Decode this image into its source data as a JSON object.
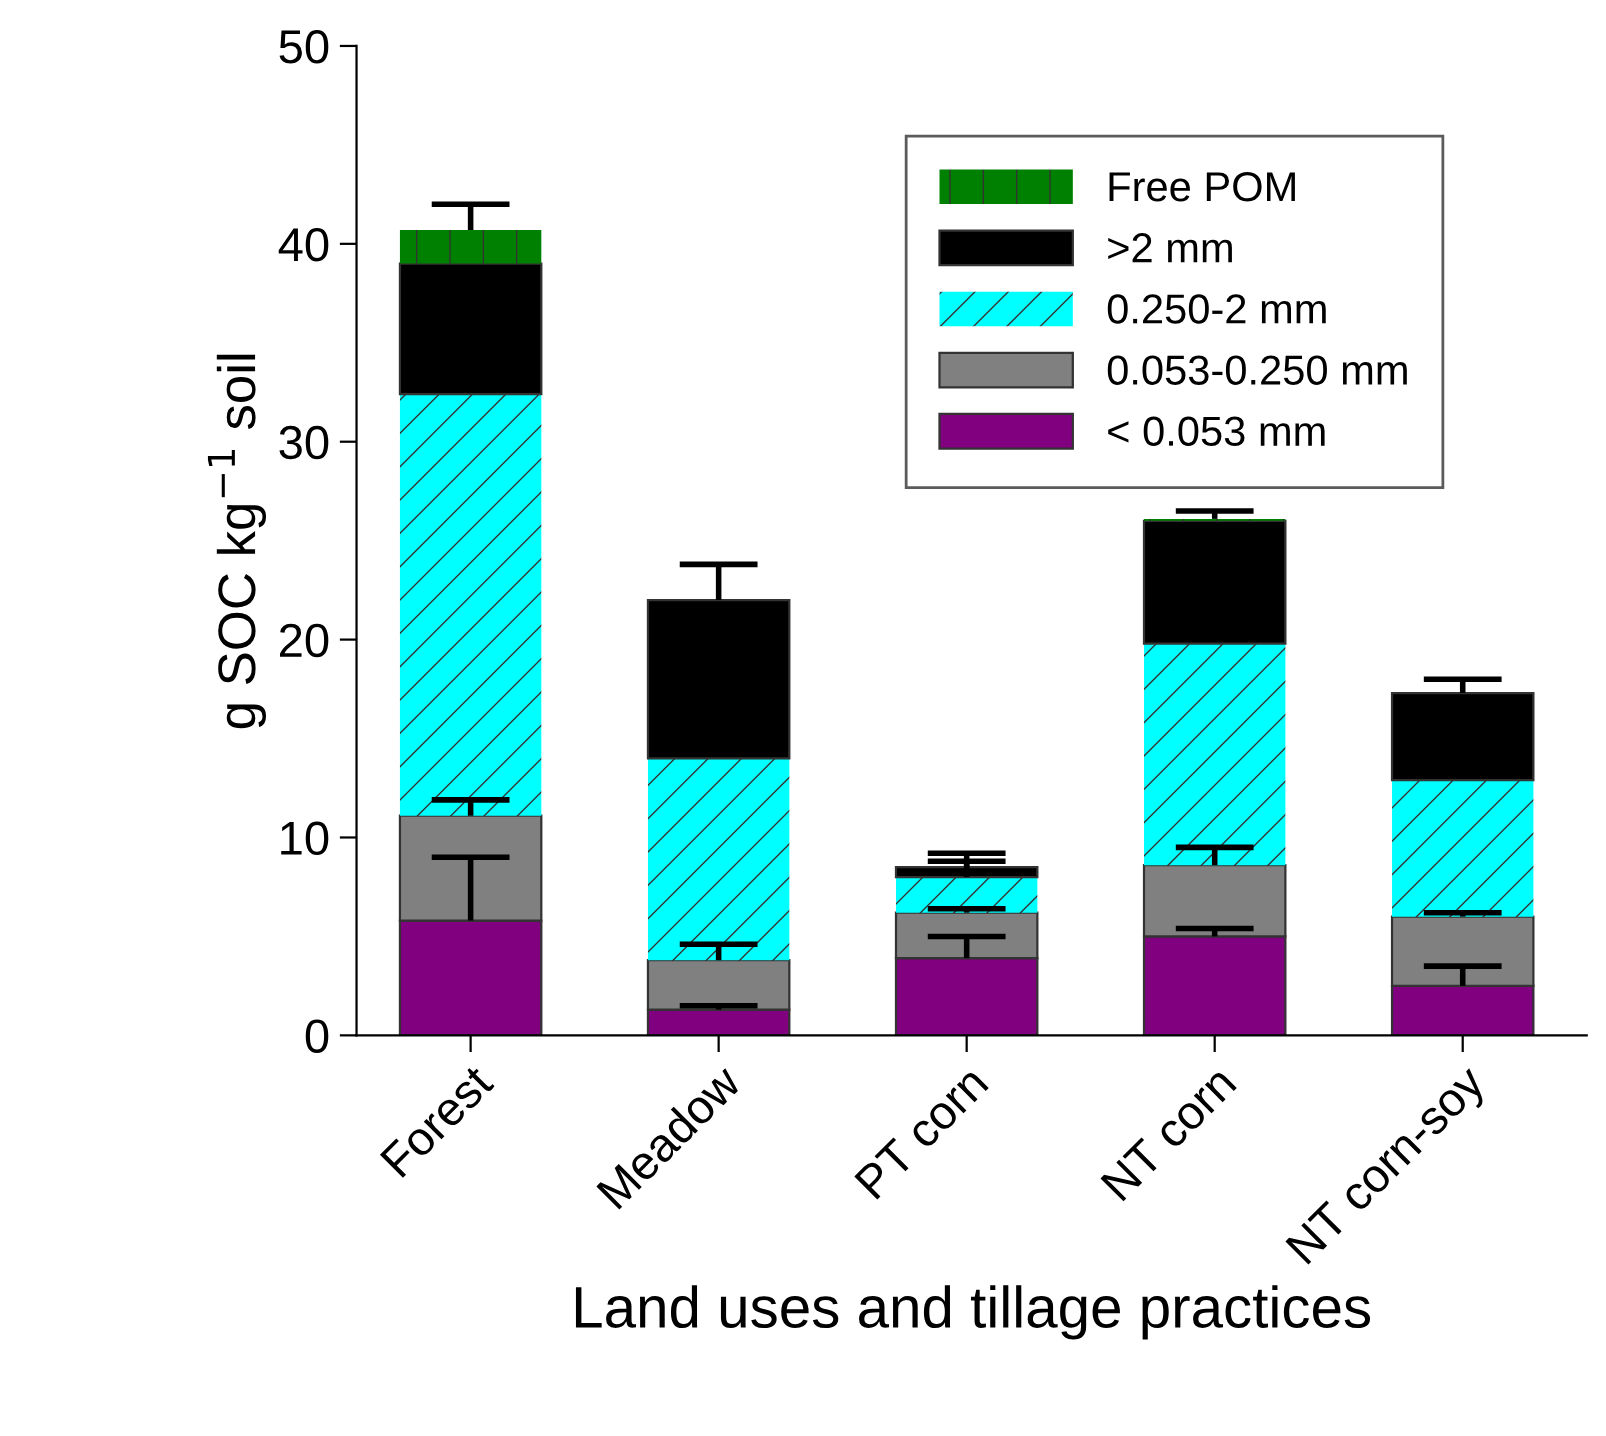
{
  "chart_data": {
    "type": "bar",
    "stacked": true,
    "xlabel": "Land uses and tillage practices",
    "ylabel": "g SOC kg$^{−1}$ soil",
    "categories": [
      "Forest",
      "Meadow",
      "PT corn",
      "NT corn",
      "NT corn-soy"
    ],
    "series": [
      {
        "name": "< 0.053 mm",
        "color": "#800080",
        "values": [
          5.8,
          1.3,
          3.9,
          5.0,
          2.5
        ],
        "errors": [
          [
            5.8,
            9.0
          ],
          [
            1.3,
            1.5
          ],
          [
            3.9,
            5.0
          ],
          [
            5.0,
            5.4
          ],
          [
            2.5,
            3.5
          ]
        ]
      },
      {
        "name": "0.053-0.250 mm",
        "color": "#808080",
        "values": [
          5.3,
          2.5,
          2.3,
          3.6,
          3.5
        ],
        "errors": [
          [
            11.1,
            11.9
          ],
          [
            3.8,
            4.6
          ],
          [
            6.2,
            6.4
          ],
          [
            8.6,
            9.5
          ],
          [
            6.0,
            6.2
          ]
        ]
      },
      {
        "name": "0.250-2 mm",
        "color": "#00ffff",
        "values": [
          21.3,
          10.2,
          1.8,
          11.2,
          6.9
        ],
        "errors": [
          null,
          null,
          [
            8.0,
            8.8
          ],
          null,
          null
        ]
      },
      {
        "name": ">2 mm",
        "color": "#000000",
        "values": [
          6.6,
          8.0,
          0.5,
          6.2,
          4.4
        ],
        "errors": [
          null,
          [
            22.0,
            23.8
          ],
          [
            8.5,
            9.2
          ],
          null,
          [
            17.3,
            18.0
          ]
        ]
      },
      {
        "name": "Free POM",
        "color": "#008000",
        "values": [
          1.7,
          0,
          0,
          0.1,
          0
        ],
        "errors": [
          [
            40.7,
            42.0
          ],
          null,
          null,
          [
            26.1,
            26.5
          ],
          null
        ]
      }
    ],
    "ylim": [
      0,
      50
    ],
    "yticks": [
      0,
      10,
      20,
      30,
      40,
      50
    ],
    "grid": false,
    "legend": "top right"
  }
}
